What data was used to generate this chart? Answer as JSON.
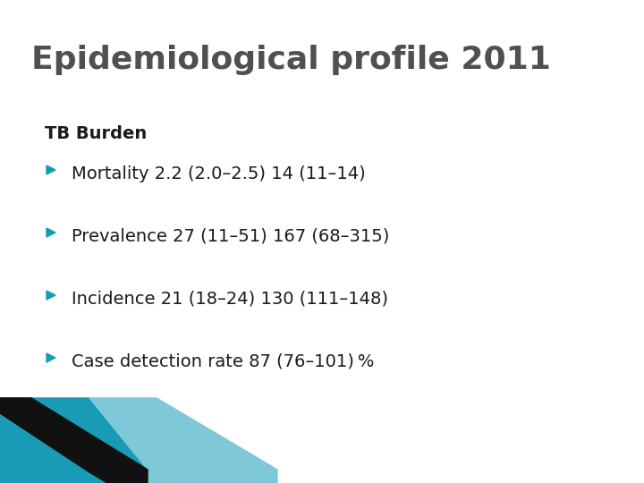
{
  "title": "Epidemiological profile 2011",
  "subtitle": "TB Burden",
  "bullet_items": [
    "Mortality 2.2 (2.0–2.5) 14 (11–14)",
    "Prevalence 27 (11–51) 167 (68–315)",
    "Incidence 21 (18–24) 130 (111–148)",
    "Case detection rate 87 (76–101) %"
  ],
  "background_color": "#ffffff",
  "title_color": "#505050",
  "subtitle_color": "#1a1a1a",
  "bullet_color": "#1a1a1a",
  "arrow_color": "#1a9bb5",
  "title_fontsize": 26,
  "subtitle_fontsize": 14,
  "bullet_fontsize": 14,
  "corner_teal": "#1a9bb5",
  "corner_teal_light": "#7ec8d8",
  "corner_black": "#111111"
}
